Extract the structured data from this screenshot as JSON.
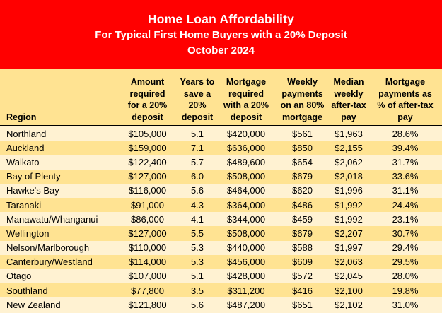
{
  "header": {
    "title": "Home Loan Affordability",
    "subtitle": "For Typical First Home Buyers with a 20% Deposit",
    "date": "October 2024"
  },
  "colors": {
    "banner_red": "#FF0000",
    "header_gold": "#FFE392",
    "row_gold": "#FFE392",
    "row_cream": "#FFF2D2",
    "banner_text": "#FFFFFF",
    "table_text": "#000000",
    "header_underline": "#000000"
  },
  "chart_data": {
    "type": "table",
    "title": "Home Loan Affordability",
    "subtitle": "For Typical First Home Buyers with a 20% Deposit",
    "period": "October 2024",
    "columns": [
      "Region",
      "Amount required for a 20% deposit",
      "Years to save a 20% deposit",
      "Mortgage required with a 20% deposit",
      "Weekly payments on an 80% mortgage",
      "Median weekly after-tax pay",
      "Mortgage payments as % of after-tax pay"
    ],
    "column_header_lines": [
      [
        "Region"
      ],
      [
        "Amount",
        "required",
        "for a 20%",
        "deposit"
      ],
      [
        "Years to",
        "save a",
        "20%",
        "deposit"
      ],
      [
        "Mortgage",
        "required",
        "with a 20%",
        "deposit"
      ],
      [
        "Weekly",
        "payments",
        "on an 80%",
        "mortgage"
      ],
      [
        "Median",
        "weekly",
        "after-tax",
        "pay"
      ],
      [
        "Mortgage",
        "payments as",
        "% of after-tax",
        "pay"
      ]
    ],
    "rows": [
      [
        "Northland",
        "$105,000",
        "5.1",
        "$420,000",
        "$561",
        "$1,963",
        "28.6%"
      ],
      [
        "Auckland",
        "$159,000",
        "7.1",
        "$636,000",
        "$850",
        "$2,155",
        "39.4%"
      ],
      [
        "Waikato",
        "$122,400",
        "5.7",
        "$489,600",
        "$654",
        "$2,062",
        "31.7%"
      ],
      [
        "Bay of Plenty",
        "$127,000",
        "6.0",
        "$508,000",
        "$679",
        "$2,018",
        "33.6%"
      ],
      [
        "Hawke's Bay",
        "$116,000",
        "5.6",
        "$464,000",
        "$620",
        "$1,996",
        "31.1%"
      ],
      [
        "Taranaki",
        "$91,000",
        "4.3",
        "$364,000",
        "$486",
        "$1,992",
        "24.4%"
      ],
      [
        "Manawatu/Whanganui",
        "$86,000",
        "4.1",
        "$344,000",
        "$459",
        "$1,992",
        "23.1%"
      ],
      [
        "Wellington",
        "$127,000",
        "5.5",
        "$508,000",
        "$679",
        "$2,207",
        "30.7%"
      ],
      [
        "Nelson/Marlborough",
        "$110,000",
        "5.3",
        "$440,000",
        "$588",
        "$1,997",
        "29.4%"
      ],
      [
        "Canterbury/Westland",
        "$114,000",
        "5.3",
        "$456,000",
        "$609",
        "$2,063",
        "29.5%"
      ],
      [
        "Otago",
        "$107,000",
        "5.1",
        "$428,000",
        "$572",
        "$2,045",
        "28.0%"
      ],
      [
        "Southland",
        "$77,800",
        "3.5",
        "$311,200",
        "$416",
        "$2,100",
        "19.8%"
      ],
      [
        "New Zealand",
        "$121,800",
        "5.6",
        "$487,200",
        "$651",
        "$2,102",
        "31.0%"
      ]
    ]
  }
}
